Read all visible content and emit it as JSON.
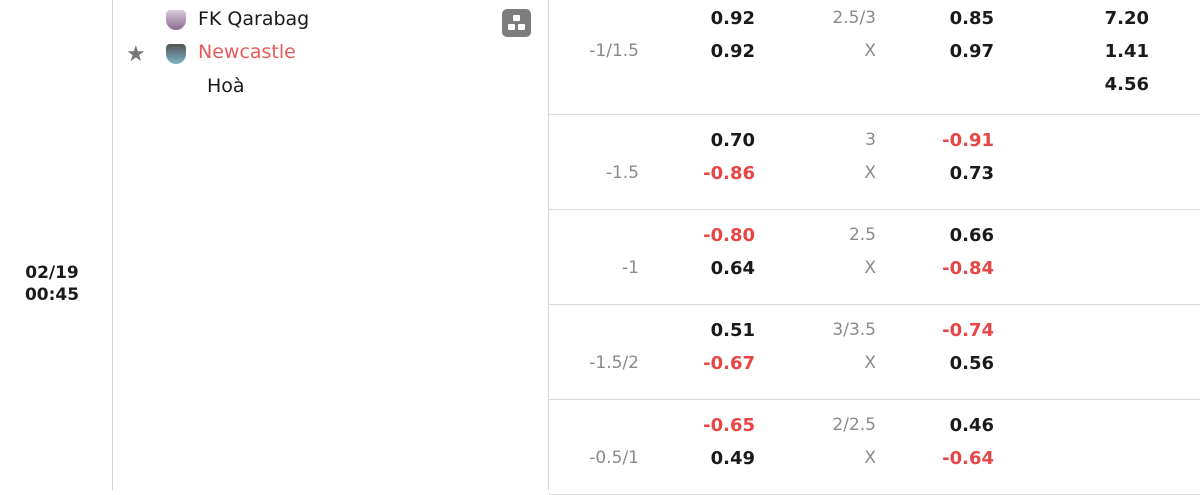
{
  "match": {
    "date": "02/19",
    "time": "00:45",
    "home": "FK Qarabag",
    "away": "Newcastle",
    "draw": "Hoà",
    "favorite": true
  },
  "colors": {
    "negative": "#e84545",
    "away_team": "#e85a5a"
  },
  "rows": [
    {
      "hdp": "-1/1.5",
      "home": "0.92",
      "away": "0.92",
      "ou": "2.5/3",
      "ou_x": "X",
      "over": "0.85",
      "under": "0.97",
      "x1": "7.20",
      "x2": "1.41",
      "xd": "4.56"
    },
    {
      "hdp": "-1.5",
      "home": "0.70",
      "away": "-0.86",
      "ou": "3",
      "ou_x": "X",
      "over": "-0.91",
      "under": "0.73"
    },
    {
      "hdp": "-1",
      "home": "-0.80",
      "away": "0.64",
      "ou": "2.5",
      "ou_x": "X",
      "over": "0.66",
      "under": "-0.84"
    },
    {
      "hdp": "-1.5/2",
      "home": "0.51",
      "away": "-0.67",
      "ou": "3/3.5",
      "ou_x": "X",
      "over": "-0.74",
      "under": "0.56"
    },
    {
      "hdp": "-0.5/1",
      "home": "-0.65",
      "away": "0.49",
      "ou": "2/2.5",
      "ou_x": "X",
      "over": "0.46",
      "under": "-0.64"
    }
  ]
}
